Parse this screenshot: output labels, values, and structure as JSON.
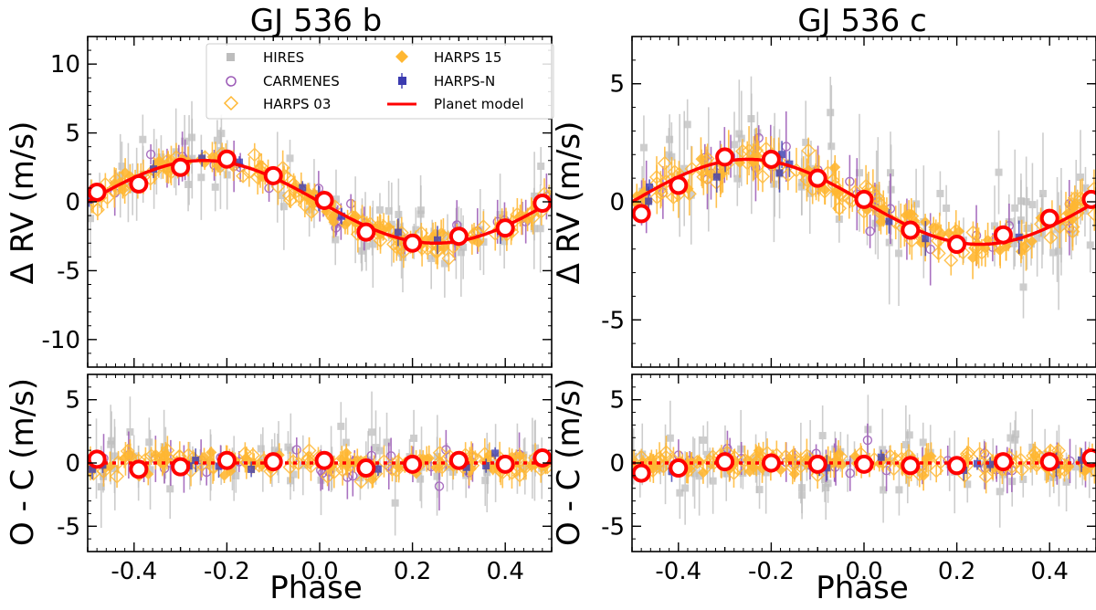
{
  "figure": {
    "xlabel": "Phase",
    "ylabel_rv": "Δ RV (m/s)",
    "ylabel_oc": "O - C (m/s)"
  },
  "legend": {
    "entries": [
      {
        "label": "HIRES",
        "marker": "square",
        "color": "#bdbdbd"
      },
      {
        "label": "CARMENES",
        "marker": "circle-open",
        "color": "#9b59b6"
      },
      {
        "label": "HARPS 03",
        "marker": "diamond-open",
        "color": "#ffb732"
      },
      {
        "label": "HARPS 15",
        "marker": "diamond",
        "color": "#ffb732"
      },
      {
        "label": "HARPS-N",
        "marker": "square",
        "color": "#3b3bb0"
      },
      {
        "label": "Planet model",
        "marker": "line",
        "color": "#ff0000"
      }
    ]
  },
  "colors": {
    "hires": "#bdbdbd",
    "carmenes": "#9b59b6",
    "harps": "#ffb732",
    "harpsn": "#3b3bb0",
    "model": "#ff0000"
  },
  "chart_data": [
    {
      "type": "scatter",
      "title": "GJ 536 b",
      "xlabel": "Phase",
      "ylabel": "Δ RV (m/s)",
      "xlim": [
        -0.5,
        0.5
      ],
      "ylim": [
        -12,
        12
      ],
      "xticks": [
        "-0.4",
        "-0.2",
        "0.0",
        "0.2",
        "0.4"
      ],
      "yticks": [
        "-10",
        "-5",
        "0",
        "5",
        "10"
      ],
      "model": {
        "shape": "sine",
        "amplitude": 3.0,
        "phase_of_max": -0.25
      },
      "binned_x": [
        -0.48,
        -0.39,
        -0.3,
        -0.2,
        -0.1,
        0.01,
        0.1,
        0.2,
        0.3,
        0.4,
        0.48
      ],
      "binned_y": [
        0.7,
        1.3,
        2.5,
        3.1,
        1.9,
        0.1,
        -2.2,
        -3.0,
        -2.5,
        -1.9,
        -0.1
      ]
    },
    {
      "type": "scatter",
      "title": "GJ 536 c",
      "xlabel": "Phase",
      "ylabel": "Δ RV (m/s)",
      "xlim": [
        -0.5,
        0.5
      ],
      "ylim": [
        -7,
        7
      ],
      "xticks": [
        "-0.4",
        "-0.2",
        "0.0",
        "0.2",
        "0.4"
      ],
      "yticks": [
        "-5",
        "0",
        "5"
      ],
      "model": {
        "shape": "sine",
        "amplitude": 1.8,
        "phase_of_max": -0.25
      },
      "binned_x": [
        -0.48,
        -0.4,
        -0.3,
        -0.2,
        -0.1,
        0.0,
        0.1,
        0.2,
        0.3,
        0.4,
        0.49
      ],
      "binned_y": [
        -0.5,
        0.7,
        1.9,
        1.8,
        1.0,
        0.1,
        -1.2,
        -1.8,
        -1.4,
        -0.7,
        0.1
      ]
    },
    {
      "type": "scatter",
      "title": "",
      "xlabel": "Phase",
      "ylabel": "O - C (m/s)",
      "xlim": [
        -0.5,
        0.5
      ],
      "ylim": [
        -7,
        7
      ],
      "xticks": [
        "-0.4",
        "-0.2",
        "0.0",
        "0.2",
        "0.4"
      ],
      "yticks": [
        "-5",
        "0",
        "5"
      ],
      "model": {
        "shape": "zero"
      },
      "binned_x": [
        -0.48,
        -0.39,
        -0.3,
        -0.2,
        -0.1,
        0.01,
        0.1,
        0.2,
        0.3,
        0.4,
        0.48
      ],
      "binned_y": [
        0.3,
        -0.5,
        -0.3,
        0.2,
        0.1,
        0.2,
        -0.4,
        -0.1,
        0.2,
        -0.1,
        0.4
      ]
    },
    {
      "type": "scatter",
      "title": "",
      "xlabel": "Phase",
      "ylabel": "O - C (m/s)",
      "xlim": [
        -0.5,
        0.5
      ],
      "ylim": [
        -7,
        7
      ],
      "xticks": [
        "-0.4",
        "-0.2",
        "0.0",
        "0.2",
        "0.4"
      ],
      "yticks": [
        "-5",
        "0",
        "5"
      ],
      "model": {
        "shape": "zero"
      },
      "binned_x": [
        -0.48,
        -0.4,
        -0.3,
        -0.2,
        -0.1,
        0.0,
        0.1,
        0.2,
        0.3,
        0.4,
        0.49
      ],
      "binned_y": [
        -0.8,
        -0.4,
        0.1,
        0.0,
        -0.1,
        -0.1,
        -0.2,
        -0.2,
        0.1,
        0.1,
        0.4
      ]
    }
  ]
}
